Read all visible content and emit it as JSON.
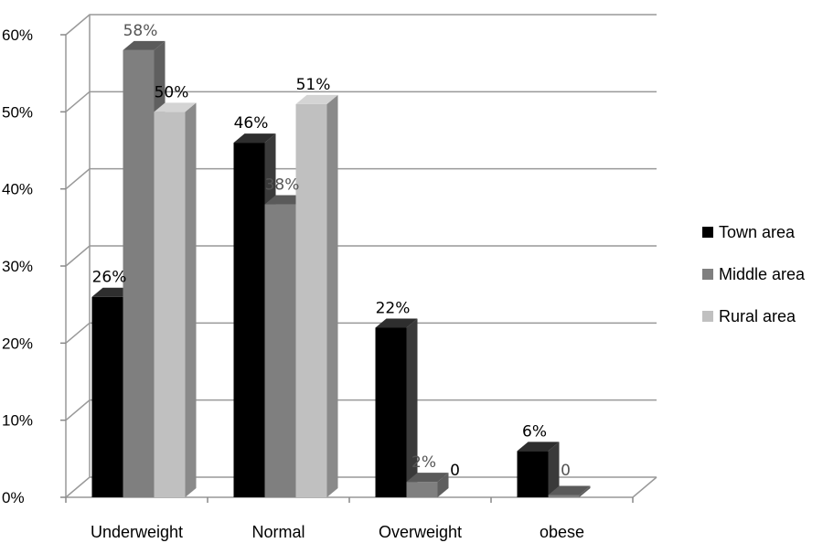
{
  "chart_data": {
    "type": "bar",
    "categories": [
      "Underweight",
      "Normal",
      "Overweight",
      "obese"
    ],
    "series": [
      {
        "name": "Town area",
        "values": [
          26,
          46,
          22,
          6
        ],
        "labels": [
          "26%",
          "46%",
          "22%",
          "6%"
        ],
        "color": "#000000",
        "side_color": "#3a3a3a",
        "top_color": "#2e2e2e",
        "label_color": "#000000"
      },
      {
        "name": "Middle area",
        "values": [
          58,
          38,
          2,
          0.3
        ],
        "labels": [
          "58%",
          "38%",
          "2%",
          "0"
        ],
        "color": "#7f7f7f",
        "side_color": "#5f5f5f",
        "top_color": "#5a5a5a",
        "label_color": "#555555"
      },
      {
        "name": "Rural area",
        "values": [
          50,
          51,
          0,
          0
        ],
        "labels": [
          "50%",
          "51%",
          "0",
          ""
        ],
        "color": "#c0c0c0",
        "side_color": "#8a8a8a",
        "top_color": "#d4d4d4",
        "label_color": "#000000"
      }
    ],
    "ylim": [
      0,
      60
    ],
    "yticks": [
      "0%",
      "10%",
      "20%",
      "30%",
      "40%",
      "50%",
      "60%"
    ],
    "grid": true,
    "legend_position": "right",
    "style": "3d-clustered-column"
  }
}
